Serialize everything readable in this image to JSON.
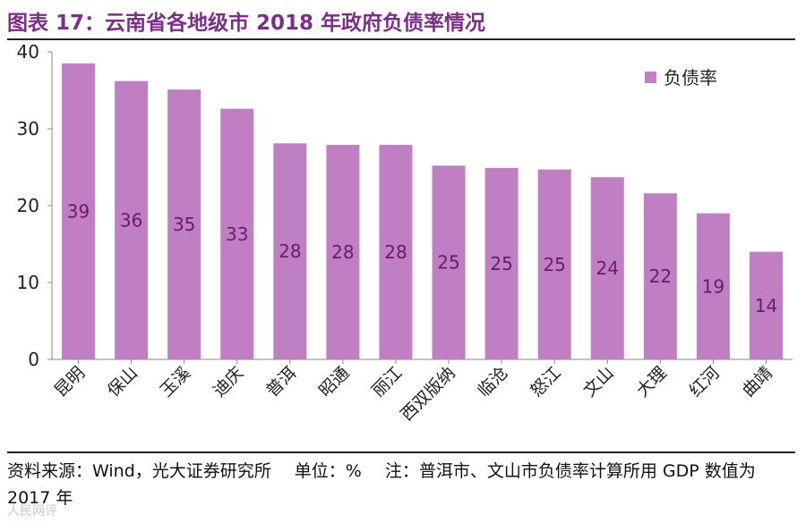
{
  "title": "图表 17：云南省各地级市 2018 年政府负债率情况",
  "footer": {
    "source": "资料来源：Wind，光大证券研究所",
    "unit": "单位：%",
    "note": "注：普洱市、文山市负债率计算所用 GDP 数值为 2017 年"
  },
  "watermark": "人民网评",
  "colors": {
    "bar": "#bf7fc2",
    "label": "#6b1a6e",
    "title": "#7c2f86"
  },
  "chart_data": {
    "type": "bar",
    "title": "",
    "xlabel": "",
    "ylabel": "",
    "ylim": [
      0,
      40
    ],
    "yticks": [
      0,
      10,
      20,
      30,
      40
    ],
    "legend": {
      "position": "top-right",
      "entries": [
        "负债率"
      ]
    },
    "categories": [
      "昆明",
      "保山",
      "玉溪",
      "迪庆",
      "普洱",
      "昭通",
      "丽江",
      "西双版纳",
      "临沧",
      "怒江",
      "文山",
      "大理",
      "红河",
      "曲靖"
    ],
    "series": [
      {
        "name": "负债率",
        "values": [
          38.5,
          36.2,
          35.1,
          32.6,
          28.1,
          27.9,
          27.9,
          25.2,
          24.9,
          24.7,
          23.7,
          21.6,
          19.0,
          14.0
        ]
      }
    ],
    "data_labels": [
      "39",
      "36",
      "35",
      "33",
      "28",
      "28",
      "28",
      "25",
      "25",
      "25",
      "24",
      "22",
      "19",
      "14"
    ]
  }
}
